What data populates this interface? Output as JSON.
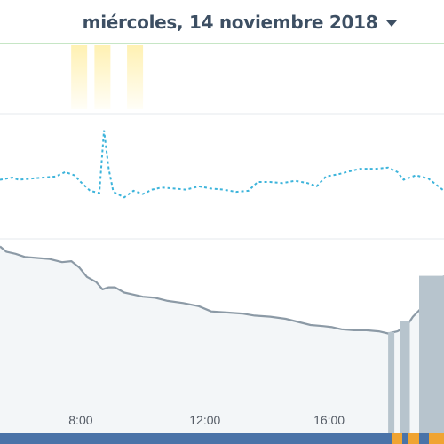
{
  "header": {
    "date": "miércoles, 14 noviembre 2018"
  },
  "colors": {
    "top_border": "#a5d6a2",
    "grid": "#e6e9ec",
    "marker": "#fff1b3",
    "dotted": "#3db4db",
    "gray_line": "#8c9aa6",
    "gray_fill": "#f3f6f8",
    "bar_fill": "#b7c4cd",
    "bottom_bar": "#4a73a8",
    "bottom_highlight": "#f0a432"
  },
  "chart_data": {
    "type": "line",
    "x_range": [
      5.4,
      19.7
    ],
    "x_ticks": [
      {
        "x": 8,
        "label": "8:00"
      },
      {
        "x": 12,
        "label": "12:00"
      },
      {
        "x": 16,
        "label": "16:00"
      }
    ],
    "markers": [
      {
        "x": 7.95
      },
      {
        "x": 8.7
      },
      {
        "x": 9.75
      }
    ],
    "dotted_series": {
      "y_range": [
        0,
        100
      ],
      "points": [
        [
          5.4,
          48
        ],
        [
          5.8,
          50
        ],
        [
          6.0,
          48
        ],
        [
          6.4,
          49
        ],
        [
          6.8,
          50
        ],
        [
          7.2,
          51
        ],
        [
          7.5,
          55
        ],
        [
          7.8,
          52
        ],
        [
          8.0,
          46
        ],
        [
          8.3,
          38
        ],
        [
          8.6,
          36
        ],
        [
          8.75,
          93
        ],
        [
          8.9,
          58
        ],
        [
          9.05,
          37
        ],
        [
          9.4,
          32
        ],
        [
          9.7,
          38
        ],
        [
          10.0,
          35
        ],
        [
          10.3,
          39
        ],
        [
          10.6,
          41
        ],
        [
          11.0,
          40
        ],
        [
          11.4,
          39
        ],
        [
          11.8,
          42
        ],
        [
          12.2,
          40
        ],
        [
          12.6,
          39
        ],
        [
          13.0,
          37
        ],
        [
          13.4,
          38
        ],
        [
          13.7,
          46
        ],
        [
          14.1,
          46
        ],
        [
          14.5,
          45
        ],
        [
          14.9,
          47
        ],
        [
          15.3,
          45
        ],
        [
          15.6,
          42
        ],
        [
          15.9,
          51
        ],
        [
          16.3,
          53
        ],
        [
          16.7,
          56
        ],
        [
          17.0,
          58
        ],
        [
          17.5,
          58
        ],
        [
          17.9,
          59
        ],
        [
          18.2,
          55
        ],
        [
          18.4,
          48
        ],
        [
          18.8,
          52
        ],
        [
          19.2,
          49
        ],
        [
          19.7,
          38
        ]
      ]
    },
    "gray_series": {
      "y_range": [
        0,
        100
      ],
      "points": [
        [
          5.4,
          97
        ],
        [
          5.6,
          92
        ],
        [
          5.9,
          90
        ],
        [
          6.2,
          87
        ],
        [
          6.6,
          86
        ],
        [
          7.0,
          85
        ],
        [
          7.4,
          82
        ],
        [
          7.7,
          83
        ],
        [
          7.95,
          77
        ],
        [
          8.2,
          68
        ],
        [
          8.5,
          63
        ],
        [
          8.7,
          56
        ],
        [
          8.9,
          58
        ],
        [
          9.1,
          58
        ],
        [
          9.4,
          53
        ],
        [
          9.7,
          51
        ],
        [
          10.0,
          49
        ],
        [
          10.4,
          48
        ],
        [
          10.8,
          45
        ],
        [
          11.3,
          43
        ],
        [
          11.8,
          40
        ],
        [
          12.2,
          35
        ],
        [
          12.7,
          34
        ],
        [
          13.2,
          33
        ],
        [
          13.6,
          31
        ],
        [
          14.1,
          30
        ],
        [
          14.6,
          28
        ],
        [
          15.0,
          25
        ],
        [
          15.4,
          22
        ],
        [
          15.8,
          21
        ],
        [
          16.1,
          20
        ],
        [
          16.4,
          18
        ],
        [
          16.8,
          17
        ],
        [
          17.2,
          17
        ],
        [
          17.6,
          16
        ],
        [
          17.9,
          14
        ],
        [
          18.2,
          16
        ],
        [
          18.5,
          21
        ],
        [
          18.7,
          30
        ],
        [
          19.0,
          39
        ],
        [
          19.3,
          52
        ],
        [
          19.7,
          69
        ]
      ]
    },
    "bars": [
      {
        "x0": 17.9,
        "x1": 18.1
      },
      {
        "x0": 18.3,
        "x1": 18.6
      },
      {
        "x0": 18.9,
        "x1": 19.7
      }
    ],
    "bottom_highlights": [
      {
        "x0": 18.0,
        "x1": 18.35
      },
      {
        "x0": 18.55,
        "x1": 18.9
      },
      {
        "x0": 19.2,
        "x1": 19.7
      }
    ]
  }
}
